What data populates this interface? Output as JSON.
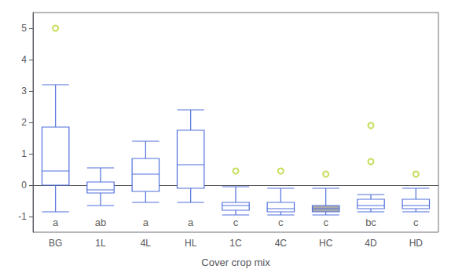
{
  "chart_data": {
    "type": "boxplot",
    "categories": [
      "BG",
      "1L",
      "4L",
      "HL",
      "1C",
      "4C",
      "HC",
      "4D",
      "HD"
    ],
    "letters": [
      "a",
      "ab",
      "a",
      "a",
      "c",
      "c",
      "c",
      "bc",
      "c"
    ],
    "boxes": [
      {
        "whisker_low": -0.85,
        "q1": 0.0,
        "median": 0.45,
        "q3": 1.85,
        "whisker_high": 3.2,
        "outliers": [
          5.0
        ]
      },
      {
        "whisker_low": -0.65,
        "q1": -0.25,
        "median": -0.15,
        "q3": 0.1,
        "whisker_high": 0.55,
        "outliers": []
      },
      {
        "whisker_low": -0.55,
        "q1": -0.2,
        "median": 0.35,
        "q3": 0.85,
        "whisker_high": 1.4,
        "outliers": []
      },
      {
        "whisker_low": -0.55,
        "q1": -0.1,
        "median": 0.65,
        "q3": 1.75,
        "whisker_high": 2.4,
        "outliers": []
      },
      {
        "whisker_low": -0.95,
        "q1": -0.8,
        "median": -0.65,
        "q3": -0.55,
        "whisker_high": -0.05,
        "outliers": [
          0.45
        ]
      },
      {
        "whisker_low": -0.95,
        "q1": -0.85,
        "median": -0.75,
        "q3": -0.55,
        "whisker_high": -0.1,
        "outliers": [
          0.45
        ]
      },
      {
        "whisker_low": -0.95,
        "q1": -0.85,
        "median": -0.75,
        "q3": -0.65,
        "whisker_high": -0.1,
        "outliers": [
          0.35
        ]
      },
      {
        "whisker_low": -0.85,
        "q1": -0.75,
        "median": -0.65,
        "q3": -0.45,
        "whisker_high": -0.3,
        "outliers": [
          1.9,
          0.75
        ]
      },
      {
        "whisker_low": -0.85,
        "q1": -0.75,
        "median": -0.65,
        "q3": -0.45,
        "whisker_high": -0.1,
        "outliers": [
          0.35
        ]
      }
    ],
    "colors": [
      "#ffffff",
      "#ffffff",
      "#ffffff",
      "#ffffff",
      "#ffffff",
      "#ffffff",
      "#aaaaaa",
      "#ffffff",
      "#ffffff"
    ],
    "xlabel": "Cover crop mix",
    "ylim": [
      -1.5,
      5.5
    ],
    "yticks": [
      -1,
      0,
      1,
      2,
      3,
      4,
      5
    ],
    "grid": false
  }
}
